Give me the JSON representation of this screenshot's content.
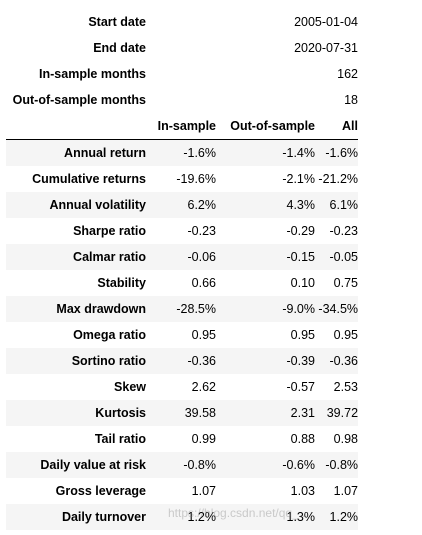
{
  "meta": [
    {
      "label": "Start date",
      "value": "2005-01-04"
    },
    {
      "label": "End date",
      "value": "2020-07-31"
    },
    {
      "label": "In-sample months",
      "value": "162"
    },
    {
      "label": "Out-of-sample months",
      "value": "18"
    }
  ],
  "columns": {
    "label": "",
    "in_sample": "In-sample",
    "out_of_sample": "Out-of-sample",
    "all": "All"
  },
  "rows": [
    {
      "label": "Annual return",
      "in_sample": "-1.6%",
      "out_of_sample": "-1.4%",
      "all": "-1.6%"
    },
    {
      "label": "Cumulative returns",
      "in_sample": "-19.6%",
      "out_of_sample": "-2.1%",
      "all": "-21.2%"
    },
    {
      "label": "Annual volatility",
      "in_sample": "6.2%",
      "out_of_sample": "4.3%",
      "all": "6.1%"
    },
    {
      "label": "Sharpe ratio",
      "in_sample": "-0.23",
      "out_of_sample": "-0.29",
      "all": "-0.23"
    },
    {
      "label": "Calmar ratio",
      "in_sample": "-0.06",
      "out_of_sample": "-0.15",
      "all": "-0.05"
    },
    {
      "label": "Stability",
      "in_sample": "0.66",
      "out_of_sample": "0.10",
      "all": "0.75"
    },
    {
      "label": "Max drawdown",
      "in_sample": "-28.5%",
      "out_of_sample": "-9.0%",
      "all": "-34.5%"
    },
    {
      "label": "Omega ratio",
      "in_sample": "0.95",
      "out_of_sample": "0.95",
      "all": "0.95"
    },
    {
      "label": "Sortino ratio",
      "in_sample": "-0.36",
      "out_of_sample": "-0.39",
      "all": "-0.36"
    },
    {
      "label": "Skew",
      "in_sample": "2.62",
      "out_of_sample": "-0.57",
      "all": "2.53"
    },
    {
      "label": "Kurtosis",
      "in_sample": "39.58",
      "out_of_sample": "2.31",
      "all": "39.72"
    },
    {
      "label": "Tail ratio",
      "in_sample": "0.99",
      "out_of_sample": "0.88",
      "all": "0.98"
    },
    {
      "label": "Daily value at risk",
      "in_sample": "-0.8%",
      "out_of_sample": "-0.6%",
      "all": "-0.8%"
    },
    {
      "label": "Gross leverage",
      "in_sample": "1.07",
      "out_of_sample": "1.03",
      "all": "1.07"
    },
    {
      "label": "Daily turnover",
      "in_sample": "1.2%",
      "out_of_sample": "1.3%",
      "all": "1.2%"
    }
  ],
  "watermark": "https://blog.csdn.net/qq_...",
  "colors": {
    "stripe": "#f5f5f5",
    "text": "#000000",
    "rule": "#000000"
  }
}
